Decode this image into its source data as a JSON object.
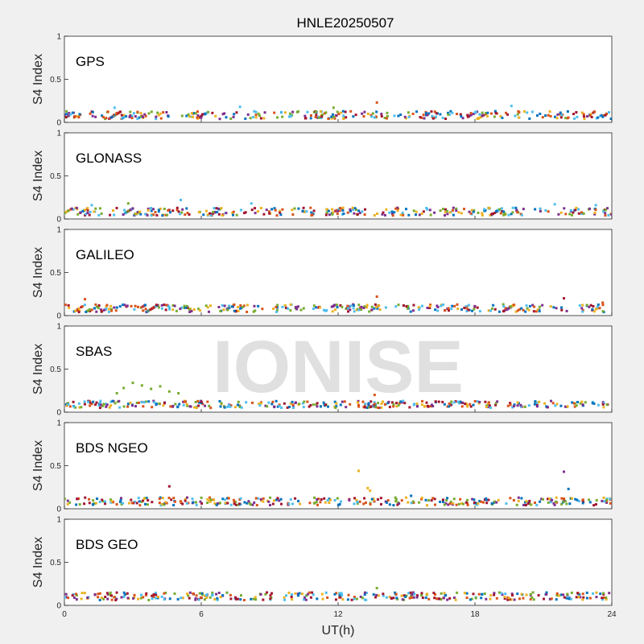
{
  "chart_data": {
    "type": "scatter",
    "title": "HNLE20250507",
    "xlabel": "UT(h)",
    "ylabel": "S4 Index",
    "xlim": [
      0,
      24
    ],
    "ylim": [
      0,
      1
    ],
    "xticks": [
      "0",
      "6",
      "12",
      "18",
      "24"
    ],
    "yticks": [
      "0",
      "0.5",
      "1"
    ],
    "watermark": "IONISE",
    "colors": [
      "#0072BD",
      "#D95319",
      "#EDB120",
      "#7E2F8E",
      "#77AC30",
      "#4DBEEE",
      "#A2142F"
    ],
    "panels": [
      {
        "label": "GPS",
        "highlights": [
          {
            "x": 13.7,
            "y": 0.23,
            "color": "#D95319"
          },
          {
            "x": 19.6,
            "y": 0.19,
            "color": "#4DBEEE"
          },
          {
            "x": 7.7,
            "y": 0.18,
            "color": "#4DBEEE"
          },
          {
            "x": 2.2,
            "y": 0.17,
            "color": "#4DBEEE"
          },
          {
            "x": 11.8,
            "y": 0.17,
            "color": "#77AC30"
          }
        ]
      },
      {
        "label": "GLONASS",
        "highlights": [
          {
            "x": 1.2,
            "y": 0.16,
            "color": "#4DBEEE"
          },
          {
            "x": 2.8,
            "y": 0.18,
            "color": "#77AC30"
          },
          {
            "x": 5.1,
            "y": 0.22,
            "color": "#4DBEEE"
          },
          {
            "x": 8.2,
            "y": 0.18,
            "color": "#4DBEEE"
          },
          {
            "x": 21.5,
            "y": 0.17,
            "color": "#4DBEEE"
          },
          {
            "x": 23.3,
            "y": 0.16,
            "color": "#4DBEEE"
          }
        ]
      },
      {
        "label": "GALILEO",
        "highlights": [
          {
            "x": 0.9,
            "y": 0.19,
            "color": "#D95319"
          },
          {
            "x": 13.7,
            "y": 0.22,
            "color": "#D95319"
          },
          {
            "x": 21.9,
            "y": 0.2,
            "color": "#A2142F"
          },
          {
            "x": 23.6,
            "y": 0.15,
            "color": "#D95319"
          }
        ]
      },
      {
        "label": "SBAS",
        "highlights": [
          {
            "x": 2.6,
            "y": 0.28,
            "color": "#77AC30"
          },
          {
            "x": 3.0,
            "y": 0.34,
            "color": "#77AC30"
          },
          {
            "x": 3.4,
            "y": 0.31,
            "color": "#77AC30"
          },
          {
            "x": 3.8,
            "y": 0.27,
            "color": "#77AC30"
          },
          {
            "x": 4.2,
            "y": 0.3,
            "color": "#77AC30"
          },
          {
            "x": 4.6,
            "y": 0.24,
            "color": "#77AC30"
          },
          {
            "x": 2.3,
            "y": 0.22,
            "color": "#77AC30"
          },
          {
            "x": 5.0,
            "y": 0.22,
            "color": "#77AC30"
          },
          {
            "x": 13.6,
            "y": 0.2,
            "color": "#D95319"
          }
        ]
      },
      {
        "label": "BDS NGEO",
        "highlights": [
          {
            "x": 4.6,
            "y": 0.26,
            "color": "#A2142F"
          },
          {
            "x": 12.9,
            "y": 0.44,
            "color": "#EDB120"
          },
          {
            "x": 13.3,
            "y": 0.24,
            "color": "#EDB120"
          },
          {
            "x": 13.4,
            "y": 0.21,
            "color": "#EDB120"
          },
          {
            "x": 21.9,
            "y": 0.43,
            "color": "#7E2F8E"
          },
          {
            "x": 22.1,
            "y": 0.23,
            "color": "#0072BD"
          },
          {
            "x": 15.2,
            "y": 0.15,
            "color": "#0072BD"
          }
        ]
      },
      {
        "label": "BDS GEO",
        "highlights": [
          {
            "x": 13.7,
            "y": 0.2,
            "color": "#77AC30"
          }
        ]
      }
    ]
  }
}
